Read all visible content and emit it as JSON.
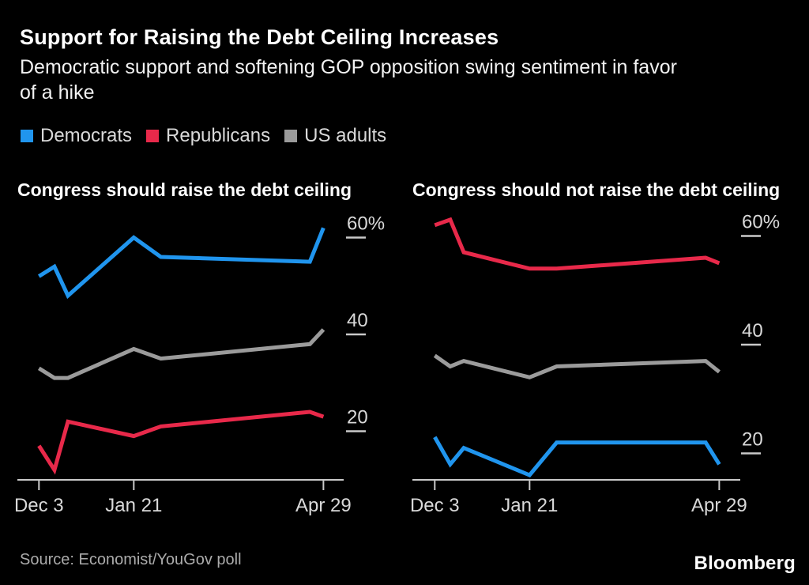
{
  "header": {
    "title": "Support for Raising the Debt Ceiling Increases",
    "subtitle_line1": "Democratic support and softening GOP opposition swing sentiment in favor",
    "subtitle_line2": "of a hike"
  },
  "legend": {
    "items": [
      {
        "label": "Democrats",
        "color": "#2095ee"
      },
      {
        "label": "Republicans",
        "color": "#e8294a"
      },
      {
        "label": "US adults",
        "color": "#9b9b9b"
      }
    ]
  },
  "colors": {
    "background": "#000000",
    "axis": "#c9c9c9",
    "tick_text": "#d9d9d9"
  },
  "chart_data": [
    {
      "type": "line",
      "title": "Congress should raise the debt ceiling",
      "x": [
        "Dec 3",
        "Dec 11",
        "Dec 18",
        "Jan 21",
        "Feb 4",
        "Apr 22",
        "Apr 29"
      ],
      "x_days": [
        0,
        8,
        15,
        49,
        63,
        140,
        147
      ],
      "series": [
        {
          "name": "Democrats",
          "color": "#2095ee",
          "values": [
            52,
            54,
            48,
            60,
            56,
            55,
            62
          ]
        },
        {
          "name": "US adults",
          "color": "#9b9b9b",
          "values": [
            33,
            31,
            31,
            37,
            35,
            38,
            41
          ]
        },
        {
          "name": "Republicans",
          "color": "#e8294a",
          "values": [
            17,
            12,
            22,
            19,
            21,
            24,
            23
          ]
        }
      ],
      "x_ticks": [
        {
          "day": 0,
          "label": "Dec 3"
        },
        {
          "day": 49,
          "label": "Jan 21"
        },
        {
          "day": 147,
          "label": "Apr 29"
        }
      ],
      "y_ticks": [
        {
          "value": 60,
          "label": "60%"
        },
        {
          "value": 40,
          "label": "40"
        },
        {
          "value": 20,
          "label": "20"
        }
      ],
      "ylim": [
        10,
        65
      ],
      "grid": false,
      "unit": "%"
    },
    {
      "type": "line",
      "title": "Congress should not raise the debt ceiling",
      "x": [
        "Dec 3",
        "Dec 11",
        "Dec 18",
        "Jan 21",
        "Feb 4",
        "Apr 22",
        "Apr 29"
      ],
      "x_days": [
        0,
        8,
        15,
        49,
        63,
        140,
        147
      ],
      "series": [
        {
          "name": "Republicans",
          "color": "#e8294a",
          "values": [
            62,
            63,
            57,
            54,
            54,
            56,
            55
          ]
        },
        {
          "name": "US adults",
          "color": "#9b9b9b",
          "values": [
            38,
            36,
            37,
            34,
            36,
            37,
            35
          ]
        },
        {
          "name": "Democrats",
          "color": "#2095ee",
          "values": [
            23,
            18,
            21,
            16,
            22,
            22,
            18
          ]
        }
      ],
      "x_ticks": [
        {
          "day": 0,
          "label": "Dec 3"
        },
        {
          "day": 49,
          "label": "Jan 21"
        },
        {
          "day": 147,
          "label": "Apr 29"
        }
      ],
      "y_ticks": [
        {
          "value": 60,
          "label": "60%"
        },
        {
          "value": 40,
          "label": "40"
        },
        {
          "value": 20,
          "label": "20"
        }
      ],
      "ylim": [
        13,
        64
      ],
      "grid": false,
      "unit": "%"
    }
  ],
  "footer": {
    "source": "Source: Economist/YouGov poll",
    "brand": "Bloomberg"
  }
}
